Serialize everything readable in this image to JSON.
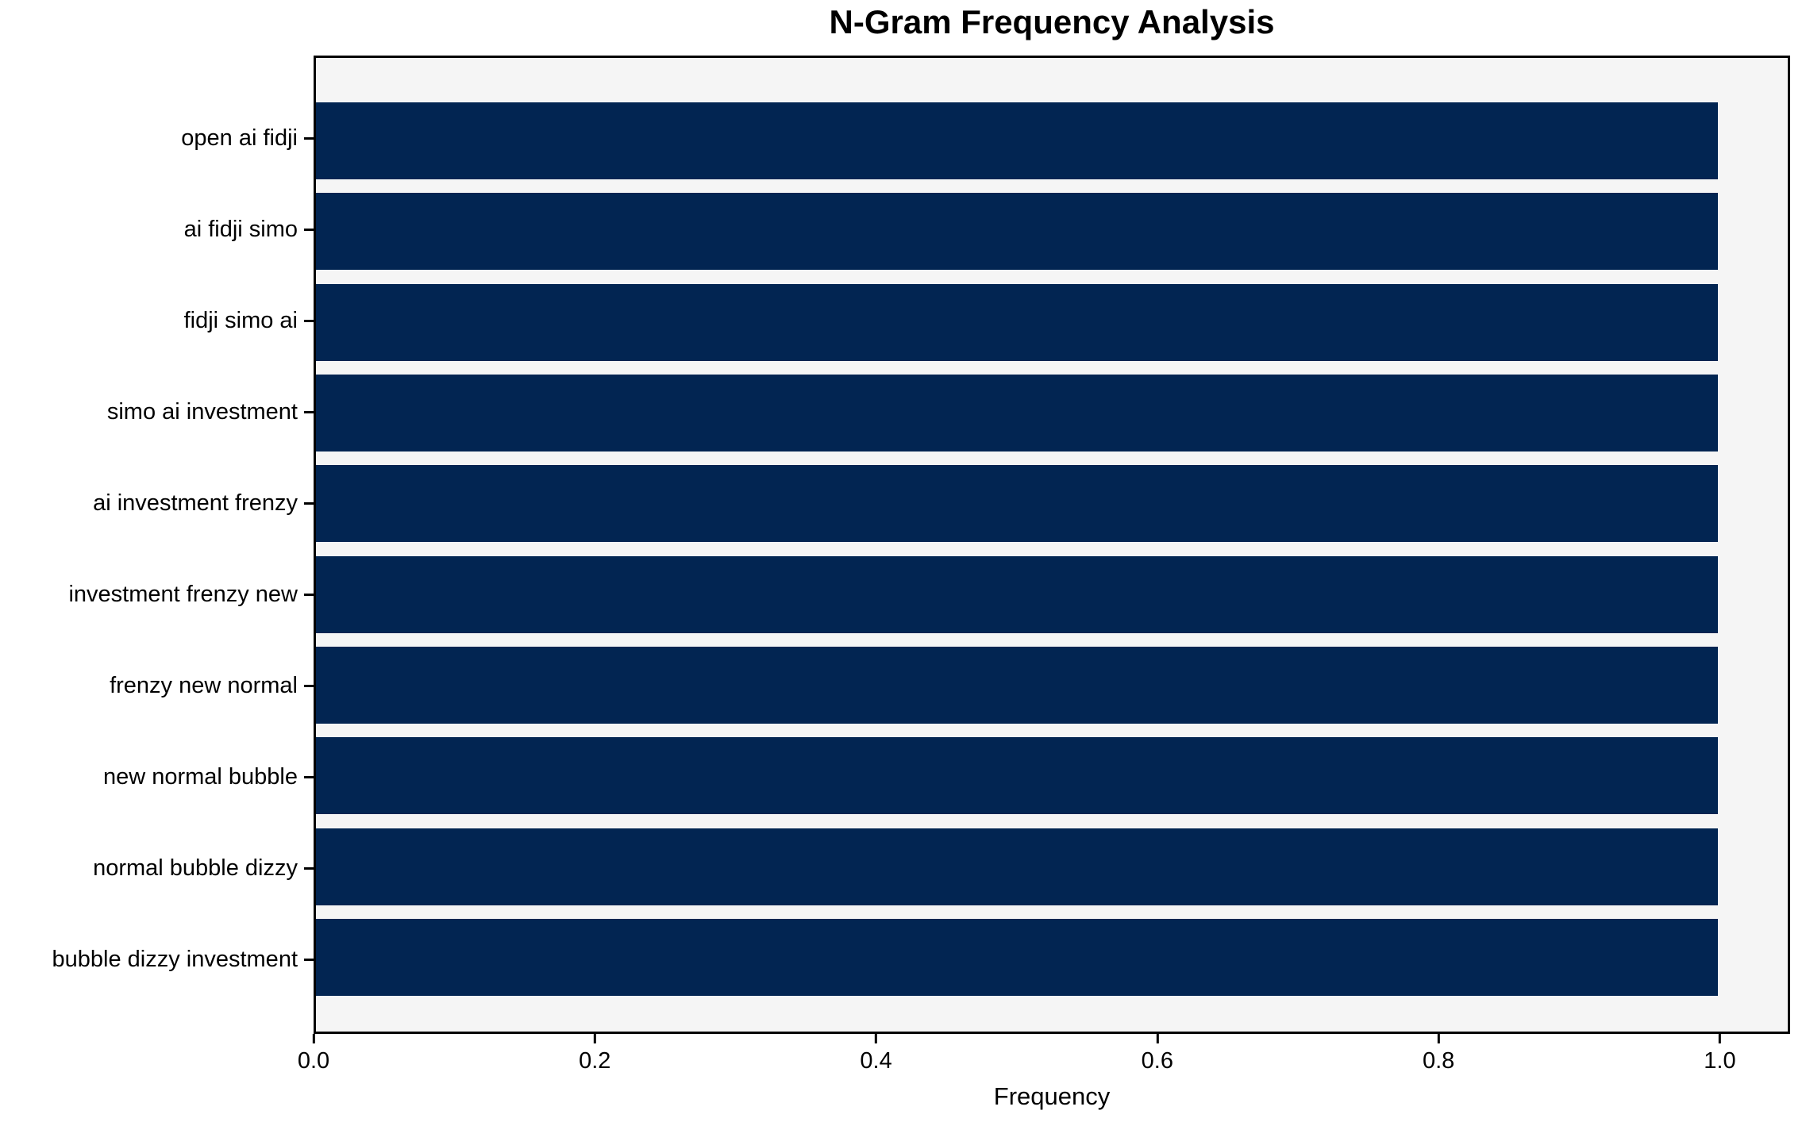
{
  "figure": {
    "title": "N-Gram Frequency Analysis"
  },
  "chart_data": {
    "type": "bar",
    "orientation": "horizontal",
    "title": "N-Gram Frequency Analysis",
    "xlabel": "Frequency",
    "ylabel": "",
    "categories": [
      "open ai fidji",
      "ai fidji simo",
      "fidji simo ai",
      "simo ai investment",
      "ai investment frenzy",
      "investment frenzy new",
      "frenzy new normal",
      "new normal bubble",
      "normal bubble dizzy",
      "bubble dizzy investment"
    ],
    "values": [
      1.0,
      1.0,
      1.0,
      1.0,
      1.0,
      1.0,
      1.0,
      1.0,
      1.0,
      1.0
    ],
    "xlim": [
      0,
      1.05
    ],
    "xticks": [
      0.0,
      0.2,
      0.4,
      0.6,
      0.8,
      1.0
    ],
    "xtick_labels": [
      "0.0",
      "0.2",
      "0.4",
      "0.6",
      "0.8",
      "1.0"
    ],
    "grid": false,
    "legend": "none",
    "colors": {
      "bar": "#022552",
      "plot_background": "#f5f5f5",
      "figure_background": "#ffffff",
      "spine": "#000000",
      "text": "#000000"
    }
  }
}
